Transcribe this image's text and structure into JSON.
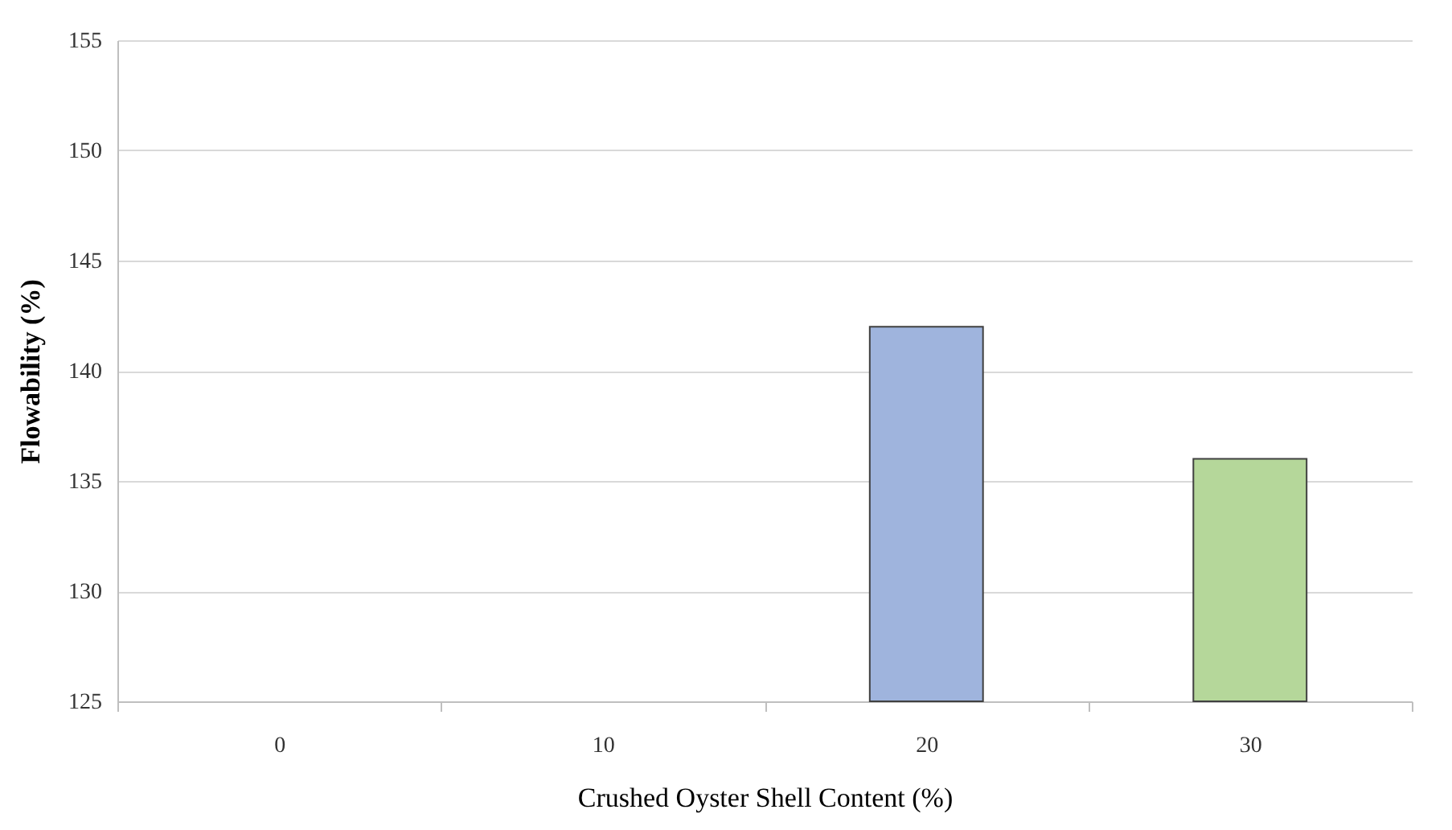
{
  "chart_data": {
    "type": "bar",
    "xlabel": "Crushed Oyster Shell Content (%)",
    "ylabel": "Flowability (%)",
    "categories": [
      "0",
      "10",
      "20",
      "30"
    ],
    "values": [
      null,
      null,
      142,
      136
    ],
    "colors": [
      null,
      null,
      "#9fb4dd",
      "#b5d79a"
    ],
    "ylim": [
      125,
      155
    ],
    "yticks": [
      125,
      130,
      135,
      140,
      145,
      150,
      155
    ],
    "grid": "y"
  }
}
